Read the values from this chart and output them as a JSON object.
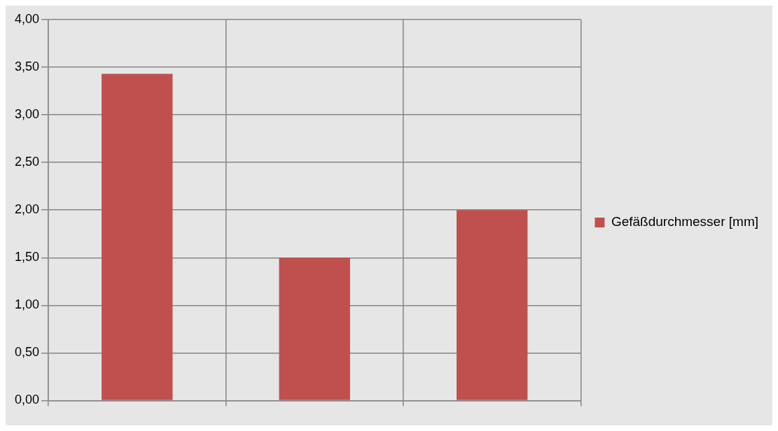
{
  "chart_data": {
    "type": "bar",
    "categories": [
      null,
      null,
      null
    ],
    "series": [
      {
        "name": "Gefäßdurchmesser [mm]",
        "color": "#c0504d",
        "values": [
          3.43,
          1.5,
          2.0
        ]
      }
    ],
    "ylim": [
      0,
      4
    ],
    "yticks": [
      {
        "value": 0,
        "label": "0,00"
      },
      {
        "value": 0.5,
        "label": "0,50"
      },
      {
        "value": 1,
        "label": "1,00"
      },
      {
        "value": 1.5,
        "label": "1,50"
      },
      {
        "value": 2,
        "label": "2,00"
      },
      {
        "value": 2.5,
        "label": "2,50"
      },
      {
        "value": 3,
        "label": "3,00"
      },
      {
        "value": 3.5,
        "label": "3,50"
      },
      {
        "value": 4,
        "label": "4,00"
      }
    ],
    "grid": true,
    "legend": "right"
  }
}
